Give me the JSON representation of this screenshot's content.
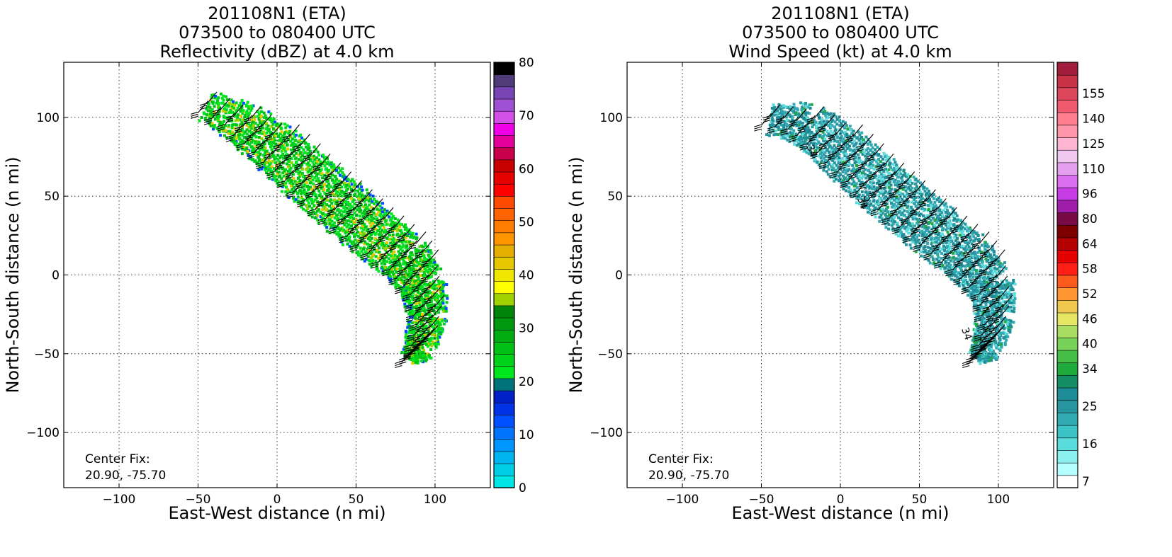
{
  "chart_data": [
    {
      "type": "heatmap",
      "title_lines": [
        "201108N1 (ETA)",
        "073500 to 080400 UTC",
        "Reflectivity (dBZ) at 4.0 km"
      ],
      "xlabel": "East-West distance (n mi)",
      "ylabel": "North-South distance (n mi)",
      "xlim": [
        -135,
        135
      ],
      "ylim": [
        -135,
        135
      ],
      "xticks": [
        -100,
        -50,
        0,
        50,
        100
      ],
      "yticks": [
        -100,
        -50,
        0,
        50,
        100
      ],
      "x_tick_labels": [
        "−100",
        "−50",
        "0",
        "50",
        "100"
      ],
      "y_tick_labels": [
        "−100",
        "−50",
        "0",
        "50",
        "100"
      ],
      "grid": true,
      "annotation_lines": [
        "Center Fix:",
        "20.90, -75.70"
      ],
      "wind_barbs": true,
      "echo_band": {
        "centerline": [
          [
            -45,
            108
          ],
          [
            -20,
            96
          ],
          [
            0,
            80
          ],
          [
            20,
            62
          ],
          [
            40,
            45
          ],
          [
            60,
            28
          ],
          [
            80,
            12
          ],
          [
            92,
            -5
          ],
          [
            95,
            -25
          ],
          [
            90,
            -45
          ],
          [
            82,
            -52
          ]
        ],
        "half_width": [
          9,
          14,
          16,
          17,
          17,
          17,
          16,
          14,
          12,
          10,
          5
        ]
      },
      "colorbar": {
        "ticks": [
          0,
          10,
          20,
          30,
          40,
          50,
          60,
          70,
          80
        ],
        "tick_labels": [
          "0",
          "10",
          "20",
          "30",
          "40",
          "50",
          "60",
          "70",
          "80"
        ],
        "levels": [
          0,
          2.5,
          5,
          7.5,
          10,
          12.5,
          15,
          17.5,
          20,
          22.5,
          25,
          27.5,
          30,
          32.5,
          35,
          37.5,
          40,
          42.5,
          45,
          47.5,
          50,
          52.5,
          55,
          57.5,
          60,
          62.5,
          65,
          67.5,
          70,
          72.5,
          75,
          77.5,
          80
        ],
        "colors": [
          "#00e6e6",
          "#00cde6",
          "#00b4f0",
          "#0096ff",
          "#0073ff",
          "#0050ff",
          "#0032e6",
          "#0020c8",
          "#00737a",
          "#00e61e",
          "#00d21a",
          "#00c016",
          "#00ae12",
          "#00980e",
          "#00840a",
          "#a0d200",
          "#ffff00",
          "#f0e600",
          "#e6c800",
          "#e6af00",
          "#ff9600",
          "#ff7d00",
          "#ff6400",
          "#ff4b00",
          "#ff0000",
          "#e60000",
          "#c80000",
          "#c8004b",
          "#e6009b",
          "#f000e6",
          "#d250e6",
          "#a050d2",
          "#7846b4",
          "#503c78",
          "#000000"
        ]
      }
    },
    {
      "type": "heatmap",
      "title_lines": [
        "201108N1 (ETA)",
        "073500 to 080400 UTC",
        "Wind Speed (kt) at 4.0 km"
      ],
      "xlabel": "East-West distance (n mi)",
      "ylabel": "North-South distance (n mi)",
      "xlim": [
        -135,
        135
      ],
      "ylim": [
        -135,
        135
      ],
      "xticks": [
        -100,
        -50,
        0,
        50,
        100
      ],
      "yticks": [
        -100,
        -50,
        0,
        50,
        100
      ],
      "x_tick_labels": [
        "−100",
        "−50",
        "0",
        "50",
        "100"
      ],
      "y_tick_labels": [
        "−100",
        "−50",
        "0",
        "50",
        "100"
      ],
      "grid": true,
      "annotation_lines": [
        "Center Fix:",
        "20.90, -75.70"
      ],
      "wind_barbs": true,
      "contour_labels": [
        "34",
        "34",
        "34"
      ],
      "echo_band": {
        "centerline": [
          [
            -45,
            100
          ],
          [
            -20,
            96
          ],
          [
            0,
            80
          ],
          [
            20,
            62
          ],
          [
            40,
            45
          ],
          [
            60,
            28
          ],
          [
            80,
            12
          ],
          [
            95,
            -5
          ],
          [
            98,
            -25
          ],
          [
            92,
            -45
          ],
          [
            85,
            -52
          ]
        ],
        "half_width": [
          9,
          14,
          16,
          17,
          17,
          17,
          16,
          14,
          12,
          10,
          5
        ]
      },
      "colorbar": {
        "tick_labels": [
          "7",
          "16",
          "25",
          "34",
          "40",
          "46",
          "52",
          "58",
          "64",
          "80",
          "96",
          "110",
          "125",
          "140",
          "155"
        ],
        "tick_bin_index": [
          0,
          3,
          6,
          9,
          11,
          13,
          15,
          17,
          19,
          21,
          23,
          25,
          27,
          29,
          31
        ],
        "colors": [
          "#ffffff",
          "#b4ffff",
          "#8cf0f0",
          "#5adcdc",
          "#3cc3c8",
          "#32aab4",
          "#2896a0",
          "#1e8c96",
          "#148c64",
          "#1eaa3c",
          "#46be46",
          "#78d25a",
          "#aadc64",
          "#e6e664",
          "#f0c850",
          "#ff9632",
          "#ff5a1e",
          "#ff1e14",
          "#e60000",
          "#b40000",
          "#7d0000",
          "#780a46",
          "#a01eaa",
          "#c83ce6",
          "#dc6ef0",
          "#e6a0f0",
          "#f0c8f0",
          "#ffb4d2",
          "#ff96aa",
          "#ff7d8c",
          "#f05a6e",
          "#dc465a",
          "#c83246",
          "#a01e3c"
        ]
      }
    }
  ]
}
